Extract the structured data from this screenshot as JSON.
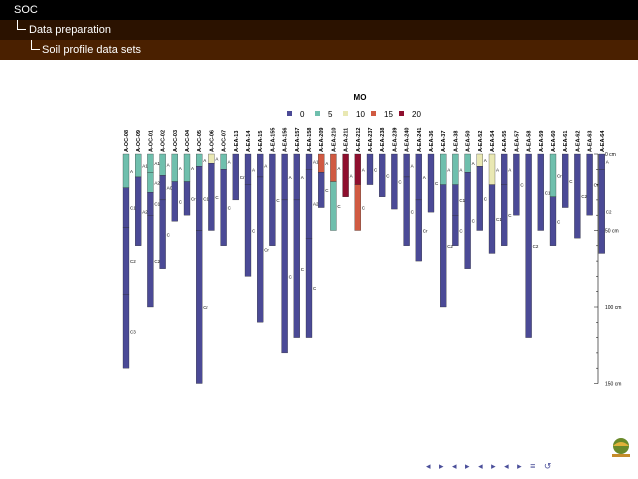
{
  "header": {
    "section": "SOC",
    "subsection": "Data preparation",
    "subsubsection": "Soil profile data sets"
  },
  "colors": {
    "bar1": "#000000",
    "bar2": "#2b1200",
    "bar3": "#4a2000"
  },
  "chart_data": {
    "type": "soil-profile-sketch",
    "legend_title": "MO",
    "legend": [
      {
        "label": "0",
        "color": "#4b4a96"
      },
      {
        "label": "5",
        "color": "#6fbfad"
      },
      {
        "label": "10",
        "color": "#e9e8b3"
      },
      {
        "label": "15",
        "color": "#d05a42"
      },
      {
        "label": "20",
        "color": "#8e0f2e"
      }
    ],
    "depth_axis": {
      "ticks": [
        "0 cm",
        "50 cm",
        "100 cm",
        "150 cm"
      ],
      "values": [
        0,
        50,
        100,
        150
      ],
      "max": 150
    },
    "profiles": [
      {
        "id": "A-OC-08",
        "horizons": [
          {
            "top": 0,
            "bottom": 22,
            "mo": 5,
            "name": "A"
          },
          {
            "top": 22,
            "bottom": 48,
            "mo": 0,
            "name": "C1"
          },
          {
            "top": 48,
            "bottom": 92,
            "mo": 0,
            "name": "C2"
          },
          {
            "top": 92,
            "bottom": 140,
            "mo": 0,
            "name": "C3"
          }
        ]
      },
      {
        "id": "A-OC-09",
        "horizons": [
          {
            "top": 0,
            "bottom": 15,
            "mo": 5,
            "name": "A1"
          },
          {
            "top": 15,
            "bottom": 60,
            "mo": 0,
            "name": "A2"
          }
        ]
      },
      {
        "id": "A-OC-01",
        "horizons": [
          {
            "top": 0,
            "bottom": 12,
            "mo": 5,
            "name": "A1"
          },
          {
            "top": 12,
            "bottom": 25,
            "mo": 5,
            "name": "A2"
          },
          {
            "top": 25,
            "bottom": 40,
            "mo": 0,
            "name": "C1"
          },
          {
            "top": 40,
            "bottom": 100,
            "mo": 0,
            "name": "C2"
          }
        ]
      },
      {
        "id": "A-OC-02",
        "horizons": [
          {
            "top": 0,
            "bottom": 14,
            "mo": 5,
            "name": "A"
          },
          {
            "top": 14,
            "bottom": 30,
            "mo": 0,
            "name": "AC"
          },
          {
            "top": 30,
            "bottom": 75,
            "mo": 0,
            "name": "C"
          }
        ]
      },
      {
        "id": "A-OC-03",
        "horizons": [
          {
            "top": 0,
            "bottom": 18,
            "mo": 5,
            "name": "A"
          },
          {
            "top": 18,
            "bottom": 44,
            "mo": 0,
            "name": "C"
          }
        ]
      },
      {
        "id": "A-OC-04",
        "horizons": [
          {
            "top": 0,
            "bottom": 18,
            "mo": 5,
            "name": "A"
          },
          {
            "top": 18,
            "bottom": 40,
            "mo": 0,
            "name": "Cr"
          }
        ]
      },
      {
        "id": "A-OC-05",
        "horizons": [
          {
            "top": 0,
            "bottom": 8,
            "mo": 5,
            "name": "A"
          },
          {
            "top": 8,
            "bottom": 50,
            "mo": 0,
            "name": "C1"
          },
          {
            "top": 50,
            "bottom": 150,
            "mo": 0,
            "name": "Cr"
          }
        ]
      },
      {
        "id": "A-OC-06",
        "horizons": [
          {
            "top": 0,
            "bottom": 6,
            "mo": 10,
            "name": "A"
          },
          {
            "top": 6,
            "bottom": 50,
            "mo": 0,
            "name": "C"
          }
        ]
      },
      {
        "id": "A-OC-07",
        "horizons": [
          {
            "top": 0,
            "bottom": 10,
            "mo": 5,
            "name": "A"
          },
          {
            "top": 10,
            "bottom": 60,
            "mo": 0,
            "name": "C"
          }
        ]
      },
      {
        "id": "A-EA-13",
        "horizons": [
          {
            "top": 0,
            "bottom": 30,
            "mo": 0,
            "name": "Cr"
          }
        ]
      },
      {
        "id": "A-EA-14",
        "horizons": [
          {
            "top": 0,
            "bottom": 20,
            "mo": 0,
            "name": "A"
          },
          {
            "top": 20,
            "bottom": 80,
            "mo": 0,
            "name": "C"
          }
        ]
      },
      {
        "id": "A-EA-15",
        "horizons": [
          {
            "top": 0,
            "bottom": 15,
            "mo": 0,
            "name": "A"
          },
          {
            "top": 15,
            "bottom": 110,
            "mo": 0,
            "name": "Cr"
          }
        ]
      },
      {
        "id": "A-EA-155",
        "horizons": [
          {
            "top": 0,
            "bottom": 60,
            "mo": 0,
            "name": "C"
          }
        ]
      },
      {
        "id": "A-EA-156",
        "horizons": [
          {
            "top": 0,
            "bottom": 30,
            "mo": 0,
            "name": "A"
          },
          {
            "top": 30,
            "bottom": 130,
            "mo": 0,
            "name": "C"
          }
        ]
      },
      {
        "id": "A-EA-157",
        "horizons": [
          {
            "top": 0,
            "bottom": 30,
            "mo": 0,
            "name": "A"
          },
          {
            "top": 30,
            "bottom": 120,
            "mo": 0,
            "name": "C"
          }
        ]
      },
      {
        "id": "A-EA-158",
        "horizons": [
          {
            "top": 0,
            "bottom": 10,
            "mo": 0,
            "name": "A1"
          },
          {
            "top": 10,
            "bottom": 55,
            "mo": 0,
            "name": "A2"
          },
          {
            "top": 55,
            "bottom": 120,
            "mo": 0,
            "name": "C"
          }
        ]
      },
      {
        "id": "A-EA-209",
        "horizons": [
          {
            "top": 0,
            "bottom": 12,
            "mo": 15,
            "name": "A"
          },
          {
            "top": 12,
            "bottom": 35,
            "mo": 0,
            "name": "C"
          }
        ]
      },
      {
        "id": "A-EA-210",
        "horizons": [
          {
            "top": 0,
            "bottom": 18,
            "mo": 15,
            "name": "A"
          },
          {
            "top": 18,
            "bottom": 50,
            "mo": 5,
            "name": "C"
          }
        ]
      },
      {
        "id": "A-EA-211",
        "horizons": [
          {
            "top": 0,
            "bottom": 28,
            "mo": 20,
            "name": "A"
          }
        ]
      },
      {
        "id": "A-EA-212",
        "horizons": [
          {
            "top": 0,
            "bottom": 20,
            "mo": 20,
            "name": "A"
          },
          {
            "top": 20,
            "bottom": 50,
            "mo": 15,
            "name": "C"
          }
        ]
      },
      {
        "id": "A-EA-237",
        "horizons": [
          {
            "top": 0,
            "bottom": 20,
            "mo": 0,
            "name": "C"
          }
        ]
      },
      {
        "id": "A-EA-238",
        "horizons": [
          {
            "top": 0,
            "bottom": 28,
            "mo": 0,
            "name": "C"
          }
        ]
      },
      {
        "id": "A-EA-239",
        "horizons": [
          {
            "top": 0,
            "bottom": 36,
            "mo": 0,
            "name": "C"
          }
        ]
      },
      {
        "id": "A-EA-240",
        "horizons": [
          {
            "top": 0,
            "bottom": 15,
            "mo": 0,
            "name": "A"
          },
          {
            "top": 15,
            "bottom": 60,
            "mo": 0,
            "name": "C"
          }
        ]
      },
      {
        "id": "A-EA-241",
        "horizons": [
          {
            "top": 0,
            "bottom": 30,
            "mo": 0,
            "name": "A"
          },
          {
            "top": 30,
            "bottom": 70,
            "mo": 0,
            "name": "Cr"
          }
        ]
      },
      {
        "id": "A-EA-36",
        "horizons": [
          {
            "top": 0,
            "bottom": 38,
            "mo": 0,
            "name": "C"
          }
        ]
      },
      {
        "id": "A-EA-37",
        "horizons": [
          {
            "top": 0,
            "bottom": 20,
            "mo": 5,
            "name": "A"
          },
          {
            "top": 20,
            "bottom": 100,
            "mo": 0,
            "name": "C2"
          }
        ]
      },
      {
        "id": "A-EA-38",
        "horizons": [
          {
            "top": 0,
            "bottom": 20,
            "mo": 5,
            "name": "A"
          },
          {
            "top": 20,
            "bottom": 40,
            "mo": 0,
            "name": "C1"
          },
          {
            "top": 40,
            "bottom": 60,
            "mo": 0,
            "name": "C"
          }
        ]
      },
      {
        "id": "A-EA-50",
        "horizons": [
          {
            "top": 0,
            "bottom": 12,
            "mo": 5,
            "name": "A"
          },
          {
            "top": 12,
            "bottom": 75,
            "mo": 0,
            "name": "C"
          }
        ]
      },
      {
        "id": "A-EA-52",
        "horizons": [
          {
            "top": 0,
            "bottom": 8,
            "mo": 10,
            "name": "A"
          },
          {
            "top": 8,
            "bottom": 50,
            "mo": 0,
            "name": "C"
          }
        ]
      },
      {
        "id": "A-EA-54",
        "horizons": [
          {
            "top": 0,
            "bottom": 20,
            "mo": 10,
            "name": "A"
          },
          {
            "top": 20,
            "bottom": 65,
            "mo": 0,
            "name": "C1"
          }
        ]
      },
      {
        "id": "A-EA-55",
        "horizons": [
          {
            "top": 0,
            "bottom": 20,
            "mo": 0,
            "name": "A"
          },
          {
            "top": 20,
            "bottom": 60,
            "mo": 0,
            "name": "C"
          }
        ]
      },
      {
        "id": "A-EA-57",
        "horizons": [
          {
            "top": 0,
            "bottom": 40,
            "mo": 0,
            "name": "C"
          }
        ]
      },
      {
        "id": "A-EA-58",
        "horizons": [
          {
            "top": 0,
            "bottom": 120,
            "mo": 0,
            "name": "C2"
          }
        ]
      },
      {
        "id": "A-EA-59",
        "horizons": [
          {
            "top": 0,
            "bottom": 50,
            "mo": 0,
            "name": "C1"
          }
        ]
      },
      {
        "id": "A-EA-60",
        "horizons": [
          {
            "top": 0,
            "bottom": 28,
            "mo": 5,
            "name": "Cr"
          },
          {
            "top": 28,
            "bottom": 60,
            "mo": 0,
            "name": "C"
          }
        ]
      },
      {
        "id": "A-EA-61",
        "horizons": [
          {
            "top": 0,
            "bottom": 35,
            "mo": 0,
            "name": "C"
          }
        ]
      },
      {
        "id": "A-EA-62",
        "horizons": [
          {
            "top": 0,
            "bottom": 55,
            "mo": 0,
            "name": "C2"
          }
        ]
      },
      {
        "id": "A-EA-63",
        "horizons": [
          {
            "top": 0,
            "bottom": 40,
            "mo": 0,
            "name": "Cr"
          }
        ]
      },
      {
        "id": "A-EA-64",
        "horizons": [
          {
            "top": 0,
            "bottom": 10,
            "mo": 0,
            "name": "A"
          },
          {
            "top": 10,
            "bottom": 65,
            "mo": 0,
            "name": "C2"
          }
        ]
      }
    ]
  },
  "navigation": {
    "symbols": "◂ ▸ ◂ ▸ ◂ ▸ ◂ ▸ ≡ ↺"
  }
}
